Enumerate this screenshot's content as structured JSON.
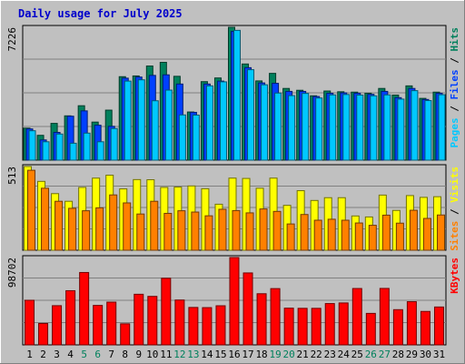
{
  "title": "Daily usage for July 2025",
  "colors": {
    "background": "#c0c0c0",
    "title": "#0000cc",
    "hits": "#00805c",
    "files": "#0040ff",
    "pages": "#00c8ff",
    "visits": "#ffff00",
    "sites": "#ff8000",
    "kbytes": "#ff0000",
    "weekend": "#00805c",
    "day": "#000000"
  },
  "chart_data": [
    {
      "type": "bar",
      "panel": "top",
      "max_label": "7226",
      "ylim": [
        0,
        7226
      ],
      "legend": [
        {
          "text": "Pages",
          "color": "#00c8ff"
        },
        {
          "text": " / ",
          "color": "#000000"
        },
        {
          "text": "Files",
          "color": "#0040ff"
        },
        {
          "text": " / ",
          "color": "#000000"
        },
        {
          "text": "Hits",
          "color": "#00805c"
        }
      ],
      "categories": [
        "1",
        "2",
        "3",
        "4",
        "5",
        "6",
        "7",
        "8",
        "9",
        "10",
        "11",
        "12",
        "13",
        "14",
        "15",
        "16",
        "17",
        "18",
        "19",
        "20",
        "21",
        "22",
        "23",
        "24",
        "25",
        "26",
        "27",
        "28",
        "29",
        "30",
        "31"
      ],
      "weekend_days": [
        5,
        6,
        12,
        13,
        19,
        20,
        26,
        27
      ],
      "series": [
        {
          "name": "Hits",
          "color": "#00805c",
          "values": [
            1740,
            1350,
            2000,
            2410,
            2960,
            2070,
            2720,
            4540,
            4580,
            5120,
            5320,
            4560,
            2620,
            4270,
            4470,
            7226,
            5230,
            4310,
            4720,
            3900,
            3800,
            3500,
            3760,
            3720,
            3700,
            3640,
            3900,
            3540,
            4040,
            3360,
            3700
          ]
        },
        {
          "name": "Files",
          "color": "#0040ff",
          "values": [
            1700,
            1100,
            1510,
            2390,
            2680,
            1900,
            1840,
            4460,
            4520,
            4610,
            4640,
            4140,
            2600,
            4140,
            4300,
            7000,
            5030,
            4200,
            4180,
            3740,
            3740,
            3460,
            3640,
            3660,
            3640,
            3580,
            3740,
            3400,
            3900,
            3300,
            3640
          ]
        },
        {
          "name": "Pages",
          "color": "#00c8ff",
          "values": [
            1600,
            1000,
            1420,
            920,
            1470,
            1000,
            1720,
            4300,
            4370,
            3230,
            3810,
            2460,
            2450,
            4040,
            4260,
            7060,
            4920,
            4100,
            3650,
            3510,
            3630,
            3380,
            3550,
            3570,
            3540,
            3500,
            3550,
            3320,
            3780,
            3240,
            3560
          ]
        }
      ]
    },
    {
      "type": "bar",
      "panel": "middle",
      "max_label": "513",
      "ylim": [
        0,
        513
      ],
      "legend": [
        {
          "text": "Sites",
          "color": "#ff8000"
        },
        {
          "text": " / ",
          "color": "#000000"
        },
        {
          "text": "Visits",
          "color": "#ffff00"
        }
      ],
      "categories": [
        "1",
        "2",
        "3",
        "4",
        "5",
        "6",
        "7",
        "8",
        "9",
        "10",
        "11",
        "12",
        "13",
        "14",
        "15",
        "16",
        "17",
        "18",
        "19",
        "20",
        "21",
        "22",
        "23",
        "24",
        "25",
        "26",
        "27",
        "28",
        "29",
        "30",
        "31"
      ],
      "series": [
        {
          "name": "Visits",
          "color": "#ffff00",
          "values": [
            513,
            422,
            347,
            300,
            385,
            442,
            460,
            376,
            433,
            432,
            385,
            387,
            394,
            377,
            282,
            442,
            440,
            380,
            442,
            275,
            365,
            305,
            322,
            322,
            210,
            204,
            338,
            244,
            335,
            324,
            328
          ]
        },
        {
          "name": "Sites",
          "color": "#ff8000",
          "values": [
            490,
            380,
            300,
            257,
            242,
            260,
            339,
            290,
            222,
            300,
            226,
            242,
            234,
            211,
            251,
            243,
            229,
            253,
            238,
            161,
            219,
            184,
            190,
            184,
            167,
            153,
            215,
            166,
            245,
            195,
            216
          ]
        }
      ]
    },
    {
      "type": "bar",
      "panel": "bottom",
      "max_label": "98702",
      "ylim": [
        0,
        98702
      ],
      "legend": [
        {
          "text": "KBytes",
          "color": "#ff0000"
        }
      ],
      "categories": [
        "1",
        "2",
        "3",
        "4",
        "5",
        "6",
        "7",
        "8",
        "9",
        "10",
        "11",
        "12",
        "13",
        "14",
        "15",
        "16",
        "17",
        "18",
        "19",
        "20",
        "21",
        "22",
        "23",
        "24",
        "25",
        "26",
        "27",
        "28",
        "29",
        "30",
        "31"
      ],
      "series": [
        {
          "name": "KBytes",
          "color": "#ff0000",
          "values": [
            50400,
            24200,
            44300,
            61200,
            81800,
            44600,
            48300,
            23800,
            57200,
            54800,
            75300,
            50700,
            42300,
            42100,
            44200,
            98702,
            81300,
            57800,
            63600,
            41500,
            41300,
            41300,
            46700,
            47400,
            63700,
            35600,
            63800,
            39800,
            48800,
            37800,
            42800
          ]
        }
      ]
    }
  ]
}
